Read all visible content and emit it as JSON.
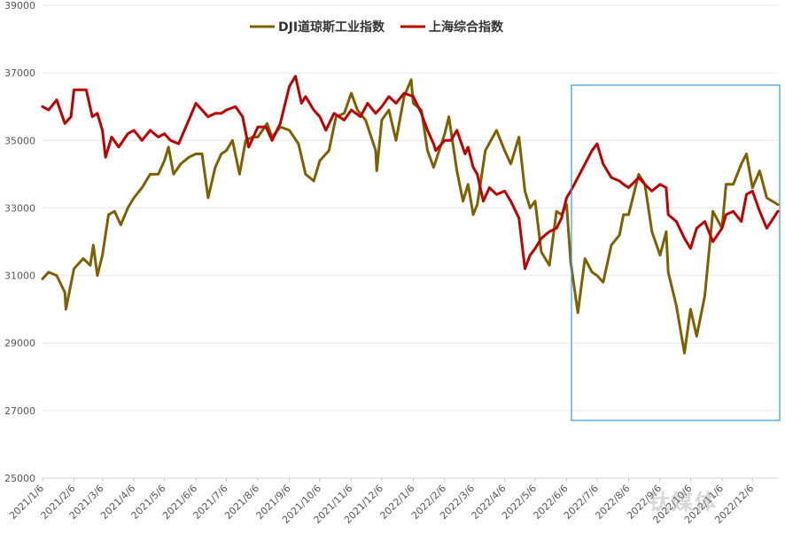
{
  "chart_data": {
    "type": "line",
    "title": "",
    "xlabel": "",
    "ylabel": "",
    "ylim": [
      25000,
      39000
    ],
    "yticks": [
      25000,
      27000,
      29000,
      31000,
      33000,
      35000,
      37000,
      39000
    ],
    "grid": true,
    "legend": "top-center",
    "x_range": [
      "2021/1/6",
      "2022/12/31"
    ],
    "categories": [
      "2021/1/6",
      "2021/2/6",
      "2021/3/6",
      "2021/4/6",
      "2021/5/6",
      "2021/6/6",
      "2021/7/6",
      "2021/8/6",
      "2021/9/6",
      "2021/10/6",
      "2021/11/6",
      "2021/12/6",
      "2022/1/6",
      "2022/2/6",
      "2022/3/6",
      "2022/4/6",
      "2022/5/6",
      "2022/6/6",
      "2022/7/6",
      "2022/8/6",
      "2022/9/6",
      "2022/10/6",
      "2022/11/6",
      "2022/12/6"
    ],
    "series": [
      {
        "name": "DJI道琼斯工业指数",
        "color": "#7f6000",
        "points": [
          [
            "2021/1/6",
            30900
          ],
          [
            "2021/1/12",
            31100
          ],
          [
            "2021/1/20",
            31000
          ],
          [
            "2021/1/28",
            30500
          ],
          [
            "2021/1/29",
            30000
          ],
          [
            "2021/2/6",
            31200
          ],
          [
            "2021/2/15",
            31500
          ],
          [
            "2021/2/22",
            31300
          ],
          [
            "2021/2/25",
            31900
          ],
          [
            "2021/3/1",
            31000
          ],
          [
            "2021/3/6",
            31600
          ],
          [
            "2021/3/12",
            32800
          ],
          [
            "2021/3/18",
            32900
          ],
          [
            "2021/3/24",
            32500
          ],
          [
            "2021/3/31",
            33000
          ],
          [
            "2021/4/6",
            33300
          ],
          [
            "2021/4/14",
            33600
          ],
          [
            "2021/4/22",
            34000
          ],
          [
            "2021/4/30",
            34000
          ],
          [
            "2021/5/6",
            34400
          ],
          [
            "2021/5/10",
            34800
          ],
          [
            "2021/5/15",
            34000
          ],
          [
            "2021/5/22",
            34300
          ],
          [
            "2021/5/30",
            34500
          ],
          [
            "2021/6/6",
            34600
          ],
          [
            "2021/6/12",
            34600
          ],
          [
            "2021/6/18",
            33300
          ],
          [
            "2021/6/25",
            34200
          ],
          [
            "2021/7/1",
            34600
          ],
          [
            "2021/7/6",
            34700
          ],
          [
            "2021/7/12",
            35000
          ],
          [
            "2021/7/19",
            34000
          ],
          [
            "2021/7/25",
            35000
          ],
          [
            "2021/8/1",
            35100
          ],
          [
            "2021/8/6",
            35100
          ],
          [
            "2021/8/15",
            35500
          ],
          [
            "2021/8/20",
            35100
          ],
          [
            "2021/8/28",
            35400
          ],
          [
            "2021/9/6",
            35300
          ],
          [
            "2021/9/15",
            34900
          ],
          [
            "2021/9/22",
            34000
          ],
          [
            "2021/9/30",
            33800
          ],
          [
            "2021/10/6",
            34400
          ],
          [
            "2021/10/15",
            34700
          ],
          [
            "2021/10/22",
            35700
          ],
          [
            "2021/10/30",
            35800
          ],
          [
            "2021/11/6",
            36400
          ],
          [
            "2021/11/12",
            35900
          ],
          [
            "2021/11/20",
            35600
          ],
          [
            "2021/11/30",
            34700
          ],
          [
            "2021/12/1",
            34100
          ],
          [
            "2021/12/6",
            35600
          ],
          [
            "2021/12/13",
            35900
          ],
          [
            "2021/12/20",
            35000
          ],
          [
            "2021/12/28",
            36300
          ],
          [
            "2022/1/4",
            36800
          ],
          [
            "2022/1/6",
            36100
          ],
          [
            "2022/1/14",
            35900
          ],
          [
            "2022/1/20",
            34700
          ],
          [
            "2022/1/26",
            34200
          ],
          [
            "2022/2/6",
            35200
          ],
          [
            "2022/2/10",
            35700
          ],
          [
            "2022/2/18",
            34100
          ],
          [
            "2022/2/24",
            33200
          ],
          [
            "2022/3/1",
            33700
          ],
          [
            "2022/3/6",
            32800
          ],
          [
            "2022/3/10",
            33100
          ],
          [
            "2022/3/18",
            34700
          ],
          [
            "2022/3/29",
            35300
          ],
          [
            "2022/4/6",
            34700
          ],
          [
            "2022/4/12",
            34300
          ],
          [
            "2022/4/20",
            35100
          ],
          [
            "2022/4/26",
            33500
          ],
          [
            "2022/5/1",
            33000
          ],
          [
            "2022/5/6",
            33200
          ],
          [
            "2022/5/12",
            31700
          ],
          [
            "2022/5/20",
            31300
          ],
          [
            "2022/5/27",
            32900
          ],
          [
            "2022/6/1",
            32800
          ],
          [
            "2022/6/6",
            33100
          ],
          [
            "2022/6/10",
            31400
          ],
          [
            "2022/6/17",
            29900
          ],
          [
            "2022/6/24",
            31500
          ],
          [
            "2022/7/1",
            31100
          ],
          [
            "2022/7/6",
            31000
          ],
          [
            "2022/7/12",
            30800
          ],
          [
            "2022/7/20",
            31900
          ],
          [
            "2022/7/28",
            32200
          ],
          [
            "2022/8/1",
            32800
          ],
          [
            "2022/8/6",
            32800
          ],
          [
            "2022/8/16",
            34000
          ],
          [
            "2022/8/22",
            33700
          ],
          [
            "2022/8/29",
            32300
          ],
          [
            "2022/9/6",
            31600
          ],
          [
            "2022/9/12",
            32300
          ],
          [
            "2022/9/14",
            31100
          ],
          [
            "2022/9/22",
            30100
          ],
          [
            "2022/9/30",
            28700
          ],
          [
            "2022/10/6",
            30000
          ],
          [
            "2022/10/12",
            29200
          ],
          [
            "2022/10/20",
            30400
          ],
          [
            "2022/10/28",
            32900
          ],
          [
            "2022/11/6",
            32400
          ],
          [
            "2022/11/10",
            33700
          ],
          [
            "2022/11/17",
            33700
          ],
          [
            "2022/11/25",
            34300
          ],
          [
            "2022/11/30",
            34600
          ],
          [
            "2022/12/6",
            33600
          ],
          [
            "2022/12/13",
            34100
          ],
          [
            "2022/12/20",
            33300
          ],
          [
            "2022/12/31",
            33100
          ]
        ]
      },
      {
        "name": "上海综合指数",
        "color": "#c00000",
        "points": [
          [
            "2021/1/6",
            36000
          ],
          [
            "2021/1/12",
            35900
          ],
          [
            "2021/1/20",
            36200
          ],
          [
            "2021/1/28",
            35500
          ],
          [
            "2021/2/3",
            35700
          ],
          [
            "2021/2/6",
            36500
          ],
          [
            "2021/2/18",
            36500
          ],
          [
            "2021/2/24",
            35700
          ],
          [
            "2021/3/1",
            35800
          ],
          [
            "2021/3/6",
            35300
          ],
          [
            "2021/3/9",
            34500
          ],
          [
            "2021/3/15",
            35100
          ],
          [
            "2021/3/22",
            34800
          ],
          [
            "2021/3/31",
            35200
          ],
          [
            "2021/4/6",
            35300
          ],
          [
            "2021/4/14",
            35000
          ],
          [
            "2021/4/22",
            35300
          ],
          [
            "2021/4/30",
            35100
          ],
          [
            "2021/5/6",
            35200
          ],
          [
            "2021/5/12",
            35000
          ],
          [
            "2021/5/20",
            34900
          ],
          [
            "2021/5/30",
            35600
          ],
          [
            "2021/6/6",
            36100
          ],
          [
            "2021/6/12",
            35900
          ],
          [
            "2021/6/18",
            35700
          ],
          [
            "2021/6/25",
            35800
          ],
          [
            "2021/7/1",
            35800
          ],
          [
            "2021/7/6",
            35900
          ],
          [
            "2021/7/15",
            36000
          ],
          [
            "2021/7/22",
            35700
          ],
          [
            "2021/7/28",
            34800
          ],
          [
            "2021/8/3",
            35200
          ],
          [
            "2021/8/6",
            35400
          ],
          [
            "2021/8/14",
            35400
          ],
          [
            "2021/8/20",
            35000
          ],
          [
            "2021/8/28",
            35500
          ],
          [
            "2021/9/6",
            36600
          ],
          [
            "2021/9/12",
            36900
          ],
          [
            "2021/9/18",
            36100
          ],
          [
            "2021/9/22",
            36300
          ],
          [
            "2021/9/30",
            35900
          ],
          [
            "2021/10/6",
            35700
          ],
          [
            "2021/10/12",
            35300
          ],
          [
            "2021/10/20",
            35800
          ],
          [
            "2021/10/30",
            35600
          ],
          [
            "2021/11/6",
            35900
          ],
          [
            "2021/11/15",
            35700
          ],
          [
            "2021/11/22",
            36100
          ],
          [
            "2021/11/30",
            35800
          ],
          [
            "2021/12/6",
            36000
          ],
          [
            "2021/12/13",
            36300
          ],
          [
            "2021/12/20",
            36100
          ],
          [
            "2021/12/28",
            36400
          ],
          [
            "2022/1/6",
            36300
          ],
          [
            "2022/1/14",
            35800
          ],
          [
            "2022/1/20",
            35300
          ],
          [
            "2022/1/26",
            34900
          ],
          [
            "2022/1/28",
            34700
          ],
          [
            "2022/2/6",
            35000
          ],
          [
            "2022/2/12",
            35000
          ],
          [
            "2022/2/18",
            35300
          ],
          [
            "2022/2/26",
            34600
          ],
          [
            "2022/3/1",
            34800
          ],
          [
            "2022/3/6",
            34200
          ],
          [
            "2022/3/10",
            34000
          ],
          [
            "2022/3/16",
            33200
          ],
          [
            "2022/3/22",
            33600
          ],
          [
            "2022/3/29",
            33400
          ],
          [
            "2022/4/6",
            33500
          ],
          [
            "2022/4/12",
            33200
          ],
          [
            "2022/4/20",
            32700
          ],
          [
            "2022/4/26",
            31200
          ],
          [
            "2022/5/1",
            31600
          ],
          [
            "2022/5/6",
            31800
          ],
          [
            "2022/5/12",
            32100
          ],
          [
            "2022/5/20",
            32300
          ],
          [
            "2022/5/27",
            32400
          ],
          [
            "2022/6/1",
            32700
          ],
          [
            "2022/6/6",
            33300
          ],
          [
            "2022/6/10",
            33500
          ],
          [
            "2022/6/17",
            33900
          ],
          [
            "2022/6/24",
            34300
          ],
          [
            "2022/7/1",
            34700
          ],
          [
            "2022/7/6",
            34900
          ],
          [
            "2022/7/12",
            34300
          ],
          [
            "2022/7/20",
            33900
          ],
          [
            "2022/7/28",
            33800
          ],
          [
            "2022/8/1",
            33700
          ],
          [
            "2022/8/6",
            33600
          ],
          [
            "2022/8/16",
            33900
          ],
          [
            "2022/8/22",
            33700
          ],
          [
            "2022/8/29",
            33500
          ],
          [
            "2022/9/6",
            33700
          ],
          [
            "2022/9/12",
            33600
          ],
          [
            "2022/9/14",
            32800
          ],
          [
            "2022/9/22",
            32600
          ],
          [
            "2022/9/30",
            32100
          ],
          [
            "2022/10/6",
            31800
          ],
          [
            "2022/10/12",
            32400
          ],
          [
            "2022/10/20",
            32600
          ],
          [
            "2022/10/28",
            32000
          ],
          [
            "2022/11/6",
            32400
          ],
          [
            "2022/11/10",
            32800
          ],
          [
            "2022/11/17",
            32900
          ],
          [
            "2022/11/25",
            32600
          ],
          [
            "2022/11/30",
            33400
          ],
          [
            "2022/12/6",
            33500
          ],
          [
            "2022/12/13",
            32900
          ],
          [
            "2022/12/20",
            32400
          ],
          [
            "2022/12/31",
            32900
          ]
        ]
      }
    ]
  }
}
